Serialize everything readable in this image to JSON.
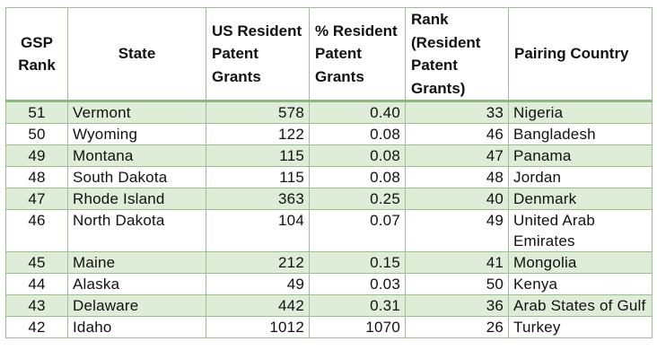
{
  "headers": {
    "gsp_rank": "GSP Rank",
    "state": "State",
    "grants": "US Resident Patent Grants",
    "pct": "% Resident Patent Grants",
    "rank": "Rank (Resident Patent Grants)",
    "country": "Pairing Country"
  },
  "rows": [
    {
      "gsp": "51",
      "state": "Vermont",
      "grants": "578",
      "pct": "0.40",
      "rank": "33",
      "country": "Nigeria"
    },
    {
      "gsp": "50",
      "state": "Wyoming",
      "grants": "122",
      "pct": "0.08",
      "rank": "46",
      "country": "Bangladesh"
    },
    {
      "gsp": "49",
      "state": "Montana",
      "grants": "115",
      "pct": "0.08",
      "rank": "47",
      "country": "Panama"
    },
    {
      "gsp": "48",
      "state": "South Dakota",
      "grants": "115",
      "pct": "0.08",
      "rank": "48",
      "country": "Jordan"
    },
    {
      "gsp": "47",
      "state": "Rhode Island",
      "grants": "363",
      "pct": "0.25",
      "rank": "40",
      "country": "Denmark"
    },
    {
      "gsp": "46",
      "state": "North Dakota",
      "grants": "104",
      "pct": "0.07",
      "rank": "49",
      "country": "United Arab Emirates"
    },
    {
      "gsp": "45",
      "state": "Maine",
      "grants": "212",
      "pct": "0.15",
      "rank": "41",
      "country": "Mongolia"
    },
    {
      "gsp": "44",
      "state": "Alaska",
      "grants": "49",
      "pct": "0.03",
      "rank": "50",
      "country": "Kenya"
    },
    {
      "gsp": "43",
      "state": "Delaware",
      "grants": "442",
      "pct": "0.31",
      "rank": "36",
      "country": "Arab States of Gulf"
    },
    {
      "gsp": "42",
      "state": "Idaho",
      "grants": "1012",
      "pct": "1070",
      "rank": "26",
      "country": "Turkey"
    }
  ],
  "colors": {
    "stripe": "#dfedd8",
    "border": "#9bc08f",
    "header_rule": "#8db880"
  }
}
